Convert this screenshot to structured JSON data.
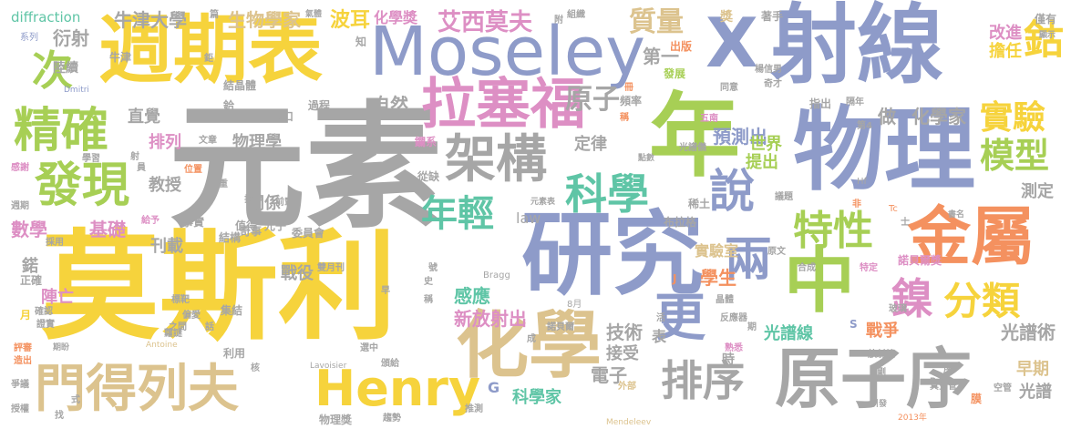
{
  "colors": {
    "gray": "#a6a6a6",
    "yellow": "#f6d33c",
    "blue": "#8e9bc9",
    "green": "#a7cf55",
    "pink": "#dd8fc4",
    "teal": "#5fc5a6",
    "orange": "#f4915f",
    "tan": "#dcc38e"
  },
  "words": [
    "元素",
    "莫斯利",
    "年",
    "物理",
    "研究",
    "週期表",
    "射線",
    "X",
    "Moseley",
    "中",
    "化學",
    "金屬",
    "原子序",
    "拉塞福",
    "門得列夫",
    "Henry",
    "架構",
    "科學",
    "說",
    "精確",
    "發現",
    "次",
    "鈷",
    "鎳",
    "分類",
    "兩",
    "更",
    "特性",
    "年輕",
    "模型",
    "實驗",
    "排序",
    "原子",
    "質量",
    "艾西莫夫",
    "波耳",
    "牛津大學",
    "生物學家",
    "化學獎",
    "衍射",
    "diffraction",
    "自然",
    "第一",
    "預測出",
    "世界",
    "提出",
    "化學家",
    "做",
    "改進",
    "擔任",
    "出版",
    "測定",
    "光譜術",
    "早期",
    "光譜",
    "直覺",
    "物理學",
    "排列",
    "教授",
    "關係",
    "數學",
    "基礎",
    "刊載",
    "定律",
    "law",
    "技術",
    "電子",
    "接受",
    "表",
    "新放射出",
    "感應",
    "學生",
    "戰爭",
    "光譜線",
    "實驗室",
    "戰役",
    "陣亡",
    "鍩",
    "繞射",
    "系列",
    "陸續",
    "牛津",
    "Dmitri",
    "結晶體",
    "缺口",
    "過程",
    "鉿",
    "五南",
    "指出",
    "隔年",
    "僅有",
    "顯示",
    "楊信男",
    "奇才",
    "同意",
    "發展",
    "頻率",
    "著手",
    "組織",
    "附",
    "獎",
    "知",
    "篇",
    "氣體",
    "鑭系",
    "從缺",
    "文章",
    "學習",
    "感謝",
    "光譜儀",
    "稱",
    "點數",
    "第4",
    "Hf",
    "Tc",
    "稀土",
    "布拉格",
    "元素表",
    "議題",
    "書名",
    "結構",
    "奇事",
    "值得",
    "光子",
    "委員會",
    "事實",
    "給予",
    "採用",
    "週期",
    "雙月刊",
    "Bragg",
    "合成",
    "特定",
    "諾貝爾獎",
    "玻璃",
    "晶體",
    "反應器",
    "原文",
    "8月",
    "標靶",
    "偏愛",
    "之間",
    "集結",
    "稱",
    "正確",
    "確認",
    "證實",
    "評審",
    "造出",
    "期盼",
    "Antoine",
    "蘿謎",
    "利用",
    "選中",
    "頒給",
    "Lavoisier",
    "核",
    "成",
    "熟悉",
    "時",
    "放射性",
    "序",
    "剛",
    "真空管",
    "空管",
    "Pm",
    "引發",
    "2013年",
    "爭議",
    "授權",
    "式",
    "找",
    "物理獎",
    "趨勢",
    "推測",
    "G",
    "科學家",
    "外部",
    "Mendeleev",
    "史",
    "號",
    "早",
    "話",
    "鉅",
    "重",
    "排",
    "射",
    "前輩",
    "員",
    "位置",
    "諾貝爾",
    "活",
    "期",
    "S",
    "J",
    "冊",
    "非",
    "士",
    "膜",
    "月"
  ]
}
